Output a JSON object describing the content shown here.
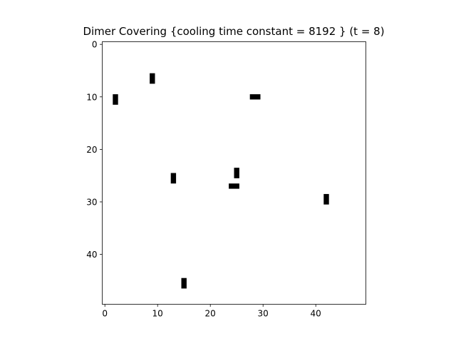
{
  "chart_data": {
    "type": "heatmap",
    "title": "Dimer Covering {cooling time constant = 8192 } (t = 8)",
    "grid_size": 50,
    "xlim": [
      -0.5,
      49.5
    ],
    "ylim": [
      49.5,
      -0.5
    ],
    "y_inverted": true,
    "xticks": [
      0,
      10,
      20,
      30,
      40
    ],
    "yticks": [
      0,
      10,
      20,
      30,
      40
    ],
    "xtick_labels": [
      "0",
      "10",
      "20",
      "30",
      "40"
    ],
    "ytick_labels": [
      "0",
      "10",
      "20",
      "30",
      "40"
    ],
    "grid": false,
    "colors": {
      "background": "#ffffff",
      "dimer": "#000000"
    },
    "dimers": [
      {
        "orientation": "vertical",
        "cells": [
          [
            9,
            6
          ],
          [
            9,
            7
          ]
        ]
      },
      {
        "orientation": "vertical",
        "cells": [
          [
            2,
            10
          ],
          [
            2,
            11
          ]
        ]
      },
      {
        "orientation": "horizontal",
        "cells": [
          [
            28,
            10
          ],
          [
            29,
            10
          ]
        ]
      },
      {
        "orientation": "vertical",
        "cells": [
          [
            25,
            24
          ],
          [
            25,
            25
          ]
        ]
      },
      {
        "orientation": "vertical",
        "cells": [
          [
            13,
            25
          ],
          [
            13,
            26
          ]
        ]
      },
      {
        "orientation": "horizontal",
        "cells": [
          [
            24,
            27
          ],
          [
            25,
            27
          ]
        ]
      },
      {
        "orientation": "vertical",
        "cells": [
          [
            42,
            29
          ],
          [
            42,
            30
          ]
        ]
      },
      {
        "orientation": "vertical",
        "cells": [
          [
            15,
            45
          ],
          [
            15,
            46
          ]
        ]
      }
    ]
  }
}
